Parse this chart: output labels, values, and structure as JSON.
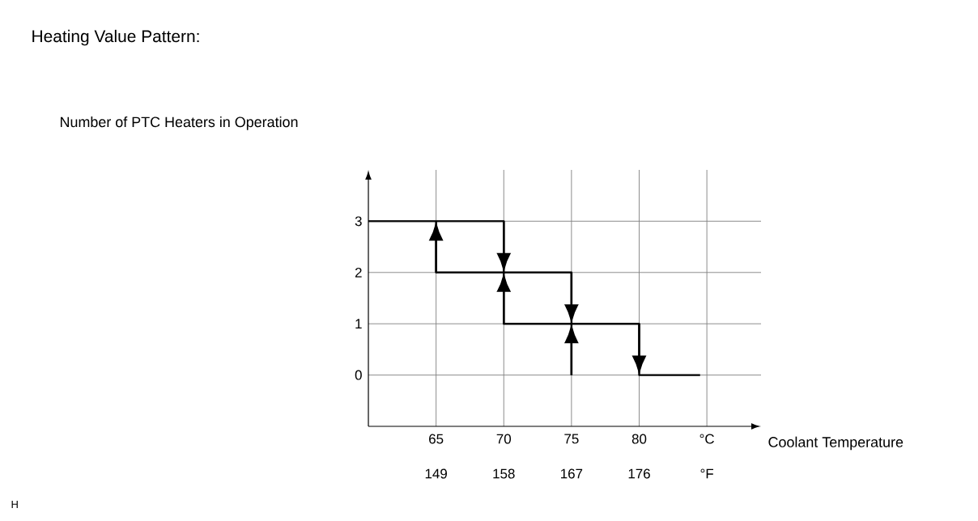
{
  "chart_data": {
    "type": "step",
    "title": "Heating Value Pattern:",
    "ylabel": "Number of PTC Heaters in Operation",
    "xlabel": "Coolant Temperature",
    "annotations": [
      "H"
    ],
    "series": [
      {
        "x": [
          60,
          70,
          75,
          80,
          84.5
        ],
        "values": [
          3,
          2,
          1,
          0,
          0
        ],
        "color": "#000000"
      },
      {
        "x": [
          75,
          75,
          70,
          65
        ],
        "values": [
          0,
          1,
          2,
          3
        ],
        "color": "#000000"
      }
    ],
    "xlim": [
      60,
      89
    ],
    "xticks": [
      65,
      70,
      75,
      80,
      {
        "value": 85,
        "label": "°C"
      }
    ],
    "x2lim": [
      140,
      192.2
    ],
    "x2ticks": [
      149,
      158,
      167,
      176,
      {
        "value": 185,
        "label": "°F"
      }
    ],
    "ylim": [
      -1,
      4
    ],
    "yticks": [
      0,
      1,
      2,
      3
    ],
    "grid": true,
    "line_style": "solid",
    "marker": "none"
  }
}
